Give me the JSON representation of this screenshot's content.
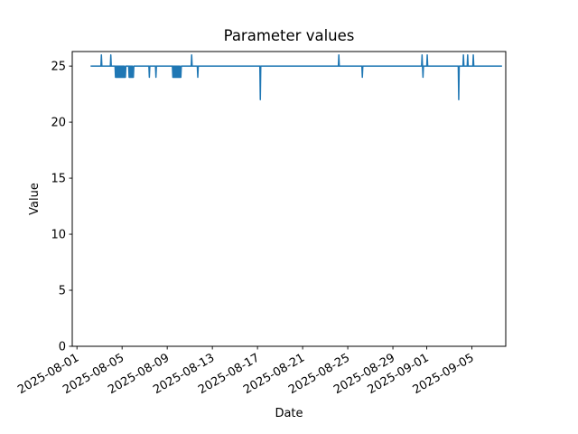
{
  "chart_data": {
    "type": "line",
    "title": "Parameter values",
    "xlabel": "Date",
    "ylabel": "Value",
    "line_color": "#1f77b4",
    "axis_color": "#000000",
    "background": "#ffffff",
    "grid": false,
    "legend": null,
    "ylim": [
      0,
      26.3
    ],
    "yticks": [
      0,
      5,
      10,
      15,
      20,
      25
    ],
    "xlim": [
      "2025-07-31 14:00",
      "2025-09-08 00:00"
    ],
    "xticks": [
      "2025-08-01",
      "2025-08-05",
      "2025-08-09",
      "2025-08-13",
      "2025-08-17",
      "2025-08-21",
      "2025-08-25",
      "2025-08-29",
      "2025-09-01",
      "2025-09-05"
    ],
    "x_tick_rotation_deg": 30,
    "points": [
      [
        "2025-08-02 05:00",
        25
      ],
      [
        "2025-08-03 03:00",
        25
      ],
      [
        "2025-08-03 04:00",
        26
      ],
      [
        "2025-08-03 05:00",
        25
      ],
      [
        "2025-08-03 23:00",
        25
      ],
      [
        "2025-08-04 00:00",
        26
      ],
      [
        "2025-08-04 01:00",
        25
      ],
      [
        "2025-08-04 09:00",
        25
      ],
      [
        "2025-08-04 10:00",
        24
      ],
      [
        "2025-08-04 11:00",
        25
      ],
      [
        "2025-08-04 12:00",
        24
      ],
      [
        "2025-08-04 13:00",
        25
      ],
      [
        "2025-08-04 14:00",
        24
      ],
      [
        "2025-08-04 15:00",
        25
      ],
      [
        "2025-08-04 16:00",
        24
      ],
      [
        "2025-08-04 17:00",
        25
      ],
      [
        "2025-08-04 18:00",
        24
      ],
      [
        "2025-08-04 19:00",
        25
      ],
      [
        "2025-08-04 20:00",
        24
      ],
      [
        "2025-08-04 21:00",
        25
      ],
      [
        "2025-08-04 22:00",
        24
      ],
      [
        "2025-08-04 23:00",
        25
      ],
      [
        "2025-08-05 00:00",
        24
      ],
      [
        "2025-08-05 01:00",
        25
      ],
      [
        "2025-08-05 02:00",
        24
      ],
      [
        "2025-08-05 03:00",
        25
      ],
      [
        "2025-08-05 04:00",
        24
      ],
      [
        "2025-08-05 05:00",
        25
      ],
      [
        "2025-08-05 06:00",
        24
      ],
      [
        "2025-08-05 07:00",
        24
      ],
      [
        "2025-08-05 08:00",
        25
      ],
      [
        "2025-08-05 14:00",
        25
      ],
      [
        "2025-08-05 15:00",
        24
      ],
      [
        "2025-08-05 16:00",
        25
      ],
      [
        "2025-08-05 17:00",
        24
      ],
      [
        "2025-08-05 18:00",
        25
      ],
      [
        "2025-08-05 19:00",
        24
      ],
      [
        "2025-08-05 20:00",
        25
      ],
      [
        "2025-08-05 21:00",
        24
      ],
      [
        "2025-08-05 22:00",
        25
      ],
      [
        "2025-08-05 23:00",
        24
      ],
      [
        "2025-08-06 00:00",
        24
      ],
      [
        "2025-08-06 01:00",
        25
      ],
      [
        "2025-08-07 09:00",
        25
      ],
      [
        "2025-08-07 10:00",
        24
      ],
      [
        "2025-08-07 11:00",
        25
      ],
      [
        "2025-08-07 23:00",
        25
      ],
      [
        "2025-08-08 00:00",
        24
      ],
      [
        "2025-08-08 01:00",
        25
      ],
      [
        "2025-08-09 11:00",
        25
      ],
      [
        "2025-08-09 12:00",
        24
      ],
      [
        "2025-08-09 13:00",
        25
      ],
      [
        "2025-08-09 14:00",
        24
      ],
      [
        "2025-08-09 15:00",
        25
      ],
      [
        "2025-08-09 16:00",
        24
      ],
      [
        "2025-08-09 17:00",
        25
      ],
      [
        "2025-08-09 18:00",
        24
      ],
      [
        "2025-08-09 19:00",
        25
      ],
      [
        "2025-08-09 20:00",
        24
      ],
      [
        "2025-08-09 21:00",
        25
      ],
      [
        "2025-08-09 22:00",
        24
      ],
      [
        "2025-08-09 23:00",
        25
      ],
      [
        "2025-08-10 00:00",
        24
      ],
      [
        "2025-08-10 01:00",
        25
      ],
      [
        "2025-08-10 02:00",
        24
      ],
      [
        "2025-08-10 03:00",
        25
      ],
      [
        "2025-08-10 04:00",
        24
      ],
      [
        "2025-08-10 05:00",
        24
      ],
      [
        "2025-08-10 06:00",
        25
      ],
      [
        "2025-08-11 03:00",
        25
      ],
      [
        "2025-08-11 04:00",
        26
      ],
      [
        "2025-08-11 05:00",
        25
      ],
      [
        "2025-08-11 16:00",
        25
      ],
      [
        "2025-08-11 17:00",
        24
      ],
      [
        "2025-08-11 18:00",
        25
      ],
      [
        "2025-08-17 05:00",
        25
      ],
      [
        "2025-08-17 06:00",
        22
      ],
      [
        "2025-08-17 07:00",
        25
      ],
      [
        "2025-08-24 04:00",
        25
      ],
      [
        "2025-08-24 05:00",
        26
      ],
      [
        "2025-08-24 06:00",
        25
      ],
      [
        "2025-08-26 06:00",
        25
      ],
      [
        "2025-08-26 07:00",
        24
      ],
      [
        "2025-08-26 08:00",
        25
      ],
      [
        "2025-08-31 13:00",
        25
      ],
      [
        "2025-08-31 14:00",
        26
      ],
      [
        "2025-08-31 15:00",
        25
      ],
      [
        "2025-08-31 16:00",
        24
      ],
      [
        "2025-08-31 17:00",
        25
      ],
      [
        "2025-09-01 00:00",
        25
      ],
      [
        "2025-09-01 01:00",
        26
      ],
      [
        "2025-09-01 02:00",
        25
      ],
      [
        "2025-09-03 19:00",
        25
      ],
      [
        "2025-09-03 20:00",
        22
      ],
      [
        "2025-09-03 21:00",
        25
      ],
      [
        "2025-09-04 05:00",
        25
      ],
      [
        "2025-09-04 06:00",
        26
      ],
      [
        "2025-09-04 07:00",
        25
      ],
      [
        "2025-09-04 14:00",
        25
      ],
      [
        "2025-09-04 15:00",
        26
      ],
      [
        "2025-09-04 16:00",
        25
      ],
      [
        "2025-09-05 02:00",
        25
      ],
      [
        "2025-09-05 03:00",
        26
      ],
      [
        "2025-09-05 04:00",
        25
      ],
      [
        "2025-09-07 16:00",
        25
      ]
    ]
  }
}
